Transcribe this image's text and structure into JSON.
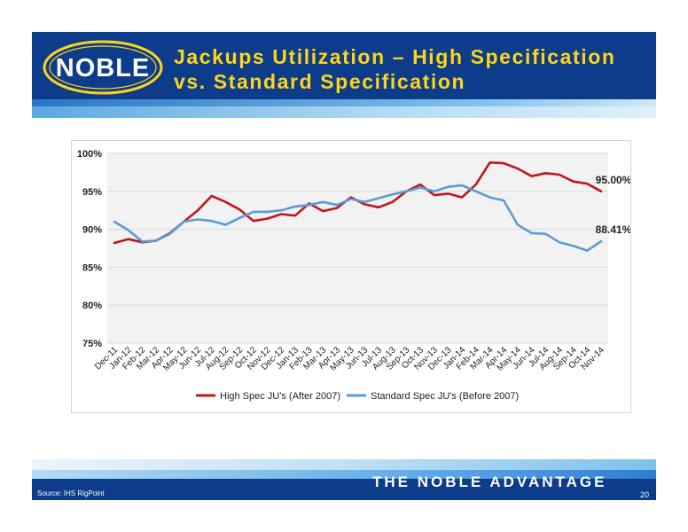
{
  "header": {
    "logo_text": "NOBLE",
    "title_line1": "Jackups Utilization – High Specification",
    "title_line2": "vs. Standard Specification"
  },
  "footer": {
    "tagline": "THE NOBLE ADVANTAGE",
    "source": "Source:   IHS RigPoint",
    "page_number": "20"
  },
  "colors": {
    "header_bg": "#0c3c8a",
    "title": "#ffd51a",
    "high_spec": "#c0161c",
    "standard_spec": "#5b9bd5"
  },
  "chart_data": {
    "type": "line",
    "title": "",
    "xlabel": "",
    "ylabel": "",
    "ylim": [
      75,
      100
    ],
    "yticks": [
      "75%",
      "80%",
      "85%",
      "90%",
      "95%",
      "100%"
    ],
    "ytick_values": [
      75,
      80,
      85,
      90,
      95,
      100
    ],
    "grid": true,
    "legend_position": "bottom",
    "categories": [
      "Dec-11",
      "Jan-12",
      "Feb-12",
      "Mar-12",
      "Apr-12",
      "May-12",
      "Jun-12",
      "Jul-12",
      "Aug-12",
      "Sep-12",
      "Oct-12",
      "Nov-12",
      "Dec-12",
      "Jan-13",
      "Feb-13",
      "Mar-13",
      "Apr-13",
      "May-13",
      "Jun-13",
      "Jul-13",
      "Aug-13",
      "Sep-13",
      "Oct-13",
      "Nov-13",
      "Dec-13",
      "Jan-14",
      "Feb-14",
      "Mar-14",
      "Apr-14",
      "May-14",
      "Jun-14",
      "Jul-14",
      "Aug-14",
      "Sep-14",
      "Oct-14",
      "Nov-14"
    ],
    "series": [
      {
        "name": "High Spec JU's (After 2007)",
        "color": "#c0161c",
        "values": [
          88.2,
          88.7,
          88.3,
          88.5,
          89.5,
          91.0,
          92.5,
          94.4,
          93.6,
          92.6,
          91.1,
          91.4,
          92.0,
          91.8,
          93.4,
          92.4,
          92.8,
          94.2,
          93.3,
          92.9,
          93.6,
          95.0,
          95.9,
          94.5,
          94.7,
          94.2,
          95.9,
          98.8,
          98.7,
          98.0,
          97.0,
          97.4,
          97.2,
          96.3,
          96.0,
          95.0
        ],
        "end_label": "95.00%"
      },
      {
        "name": "Standard Spec JU's (Before 2007)",
        "color": "#5b9bd5",
        "values": [
          91.0,
          89.9,
          88.4,
          88.5,
          89.4,
          91.0,
          91.3,
          91.1,
          90.6,
          91.5,
          92.3,
          92.3,
          92.5,
          93.0,
          93.2,
          93.6,
          93.2,
          94.0,
          93.6,
          94.1,
          94.6,
          95.0,
          95.5,
          95.0,
          95.6,
          95.8,
          95.0,
          94.2,
          93.8,
          90.6,
          89.5,
          89.4,
          88.3,
          87.8,
          87.2,
          88.41
        ],
        "end_label": "88.41%"
      }
    ]
  }
}
